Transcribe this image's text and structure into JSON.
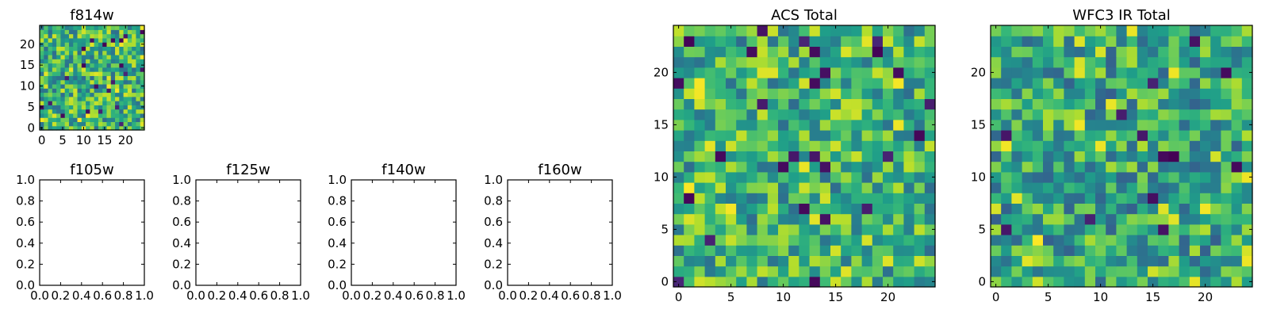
{
  "chart_data": [
    {
      "id": "f814w",
      "type": "heatmap",
      "title": "f814w",
      "size": 25,
      "xticks": [
        0,
        5,
        10,
        15,
        20
      ],
      "yticks": [
        0,
        5,
        10,
        15,
        20
      ],
      "xlim": [
        -0.5,
        24.5
      ],
      "ylim": [
        -0.5,
        24.5
      ],
      "colormap": "viridis",
      "seed": 814,
      "lo": 0.35,
      "hi": 1.0
    },
    {
      "id": "f105w",
      "type": "empty",
      "title": "f105w",
      "xticks": [
        "0.0",
        "0.2",
        "0.4",
        "0.6",
        "0.8",
        "1.0"
      ],
      "yticks": [
        "0.0",
        "0.2",
        "0.4",
        "0.6",
        "0.8",
        "1.0"
      ],
      "xlim": [
        0,
        1
      ],
      "ylim": [
        0,
        1
      ]
    },
    {
      "id": "f125w",
      "type": "empty",
      "title": "f125w",
      "xticks": [
        "0.0",
        "0.2",
        "0.4",
        "0.6",
        "0.8",
        "1.0"
      ],
      "yticks": [
        "0.0",
        "0.2",
        "0.4",
        "0.6",
        "0.8",
        "1.0"
      ],
      "xlim": [
        0,
        1
      ],
      "ylim": [
        0,
        1
      ]
    },
    {
      "id": "f140w",
      "type": "empty",
      "title": "f140w",
      "xticks": [
        "0.0",
        "0.2",
        "0.4",
        "0.6",
        "0.8",
        "1.0"
      ],
      "yticks": [
        "0.0",
        "0.2",
        "0.4",
        "0.6",
        "0.8",
        "1.0"
      ],
      "xlim": [
        0,
        1
      ],
      "ylim": [
        0,
        1
      ]
    },
    {
      "id": "f160w",
      "type": "empty",
      "title": "f160w",
      "xticks": [
        "0.0",
        "0.2",
        "0.4",
        "0.6",
        "0.8",
        "1.0"
      ],
      "yticks": [
        "0.0",
        "0.2",
        "0.4",
        "0.6",
        "0.8",
        "1.0"
      ],
      "xlim": [
        0,
        1
      ],
      "ylim": [
        0,
        1
      ]
    },
    {
      "id": "acs-total",
      "type": "heatmap",
      "title": "ACS Total",
      "size": 25,
      "xticks": [
        0,
        5,
        10,
        15,
        20
      ],
      "yticks": [
        0,
        5,
        10,
        15,
        20
      ],
      "xlim": [
        -0.5,
        24.5
      ],
      "ylim": [
        -0.5,
        24.5
      ],
      "colormap": "viridis",
      "seed": 2024,
      "lo": 0.35,
      "hi": 1.0
    },
    {
      "id": "wfc3-ir-total",
      "type": "heatmap",
      "title": "WFC3 IR Total",
      "size": 25,
      "xticks": [
        0,
        5,
        10,
        15,
        20
      ],
      "yticks": [
        0,
        5,
        10,
        15,
        20
      ],
      "xlim": [
        -0.5,
        24.5
      ],
      "ylim": [
        -0.5,
        24.5
      ],
      "colormap": "viridis",
      "seed": 3160,
      "lo": 0.3,
      "hi": 0.95
    }
  ]
}
